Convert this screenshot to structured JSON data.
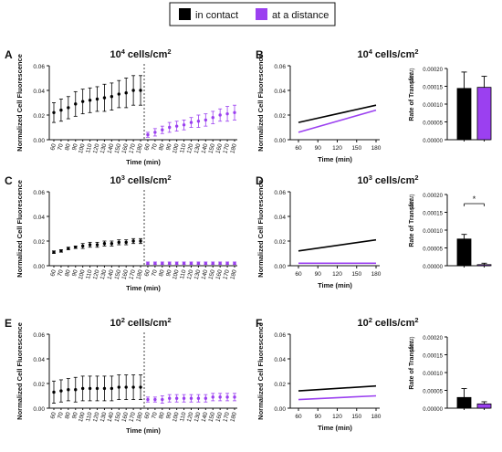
{
  "legend": {
    "items": [
      {
        "label": "in contact",
        "color": "#000000"
      },
      {
        "label": "at a distance",
        "color": "#9b40f0"
      }
    ]
  },
  "colors": {
    "contact": "#000000",
    "distance": "#9b40f0",
    "axis": "#111111"
  },
  "x_label": "Time (min)",
  "timecourse_ylabel": "Normalized Cell Fluorescence",
  "rate_ylabel": "Rate of Transfer",
  "rate_unit": "(Δf/Δt)",
  "rows": [
    {
      "title_base": "10",
      "title_exp": "4",
      "title_unit": " cells/cm",
      "title_sq": "2",
      "left_letter": "A",
      "right_letter": "B",
      "significance": ""
    },
    {
      "title_base": "10",
      "title_exp": "3",
      "title_unit": " cells/cm",
      "title_sq": "2",
      "left_letter": "C",
      "right_letter": "D",
      "significance": "*"
    },
    {
      "title_base": "10",
      "title_exp": "2",
      "title_unit": " cells/cm",
      "title_sq": "2",
      "left_letter": "E",
      "right_letter": "F",
      "significance": ""
    }
  ],
  "chart_data": [
    {
      "type": "scatter",
      "panel": "A",
      "x_ticks": [
        "60",
        "70",
        "80",
        "90",
        "100",
        "110",
        "120",
        "130",
        "140",
        "150",
        "160",
        "170",
        "180",
        "60",
        "70",
        "80",
        "90",
        "100",
        "110",
        "120",
        "130",
        "140",
        "150",
        "160",
        "170",
        "180"
      ],
      "ylim": [
        0,
        0.06
      ],
      "y_ticks": [
        "0.00",
        "0.02",
        "0.04",
        "0.06"
      ],
      "series": [
        {
          "name": "in contact",
          "values": [
            0.022,
            0.024,
            0.026,
            0.029,
            0.031,
            0.032,
            0.033,
            0.034,
            0.035,
            0.037,
            0.038,
            0.04,
            0.04
          ],
          "errors": [
            0.008,
            0.009,
            0.009,
            0.01,
            0.01,
            0.01,
            0.01,
            0.011,
            0.011,
            0.011,
            0.012,
            0.012,
            0.012
          ]
        },
        {
          "name": "at a distance",
          "values": [
            0.004,
            0.006,
            0.008,
            0.01,
            0.011,
            0.012,
            0.014,
            0.015,
            0.016,
            0.018,
            0.02,
            0.021,
            0.022
          ],
          "errors": [
            0.002,
            0.003,
            0.003,
            0.004,
            0.004,
            0.004,
            0.004,
            0.005,
            0.005,
            0.005,
            0.005,
            0.006,
            0.006
          ]
        }
      ]
    },
    {
      "type": "line",
      "panel": "B",
      "xlim": [
        60,
        180
      ],
      "x_ticks": [
        "60",
        "90",
        "120",
        "150",
        "180"
      ],
      "ylim": [
        0,
        0.06
      ],
      "y_ticks": [
        "0.00",
        "0.02",
        "0.04",
        "0.06"
      ],
      "series": [
        {
          "name": "in contact",
          "x": [
            60,
            180
          ],
          "y": [
            0.014,
            0.028
          ]
        },
        {
          "name": "at a distance",
          "x": [
            60,
            180
          ],
          "y": [
            0.006,
            0.024
          ]
        }
      ]
    },
    {
      "type": "bar",
      "panel": "B-rate",
      "categories": [
        "in contact",
        "at a distance"
      ],
      "values": [
        0.000144,
        0.000147
      ],
      "errors": [
        4.6e-05,
        3.1e-05
      ],
      "ylim": [
        0,
        0.0002
      ],
      "y_ticks": [
        "0.00000",
        "0.00005",
        "0.00010",
        "0.00015",
        "0.00020"
      ]
    },
    {
      "type": "scatter",
      "panel": "C",
      "x_ticks": [
        "60",
        "70",
        "80",
        "90",
        "100",
        "110",
        "120",
        "130",
        "140",
        "150",
        "160",
        "170",
        "180",
        "60",
        "70",
        "80",
        "90",
        "100",
        "110",
        "120",
        "130",
        "140",
        "150",
        "160",
        "170",
        "180"
      ],
      "ylim": [
        0,
        0.06
      ],
      "y_ticks": [
        "0.00",
        "0.02",
        "0.04",
        "0.06"
      ],
      "series": [
        {
          "name": "in contact",
          "values": [
            0.011,
            0.012,
            0.014,
            0.015,
            0.016,
            0.017,
            0.017,
            0.018,
            0.018,
            0.019,
            0.019,
            0.02,
            0.02
          ],
          "errors": [
            0.001,
            0.001,
            0.001,
            0.001,
            0.002,
            0.002,
            0.002,
            0.002,
            0.002,
            0.002,
            0.002,
            0.002,
            0.002
          ]
        },
        {
          "name": "at a distance",
          "values": [
            0.002,
            0.002,
            0.002,
            0.002,
            0.002,
            0.002,
            0.002,
            0.002,
            0.002,
            0.002,
            0.002,
            0.002,
            0.002
          ],
          "errors": [
            0.001,
            0.001,
            0.001,
            0.001,
            0.001,
            0.001,
            0.001,
            0.001,
            0.001,
            0.001,
            0.001,
            0.001,
            0.001
          ]
        }
      ]
    },
    {
      "type": "line",
      "panel": "D",
      "xlim": [
        60,
        180
      ],
      "x_ticks": [
        "60",
        "90",
        "120",
        "150",
        "180"
      ],
      "ylim": [
        0,
        0.06
      ],
      "y_ticks": [
        "0.00",
        "0.02",
        "0.04",
        "0.06"
      ],
      "series": [
        {
          "name": "in contact",
          "x": [
            60,
            180
          ],
          "y": [
            0.012,
            0.021
          ]
        },
        {
          "name": "at a distance",
          "x": [
            60,
            180
          ],
          "y": [
            0.002,
            0.002
          ]
        }
      ]
    },
    {
      "type": "bar",
      "panel": "D-rate",
      "categories": [
        "in contact",
        "at a distance"
      ],
      "values": [
        7.5e-05,
        3e-06
      ],
      "errors": [
        1.3e-05,
        4e-06
      ],
      "ylim": [
        0,
        0.0002
      ],
      "y_ticks": [
        "0.00000",
        "0.00005",
        "0.00010",
        "0.00015",
        "0.00020"
      ]
    },
    {
      "type": "scatter",
      "panel": "E",
      "x_ticks": [
        "60",
        "70",
        "80",
        "90",
        "100",
        "110",
        "120",
        "130",
        "140",
        "150",
        "160",
        "170",
        "180",
        "60",
        "70",
        "80",
        "90",
        "100",
        "110",
        "120",
        "130",
        "140",
        "150",
        "160",
        "170",
        "180"
      ],
      "ylim": [
        0,
        0.06
      ],
      "y_ticks": [
        "0.00",
        "0.02",
        "0.04",
        "0.06"
      ],
      "series": [
        {
          "name": "in contact",
          "values": [
            0.013,
            0.014,
            0.015,
            0.015,
            0.016,
            0.016,
            0.016,
            0.016,
            0.016,
            0.017,
            0.017,
            0.017,
            0.017
          ],
          "errors": [
            0.009,
            0.009,
            0.009,
            0.01,
            0.01,
            0.01,
            0.01,
            0.01,
            0.01,
            0.01,
            0.01,
            0.01,
            0.01
          ]
        },
        {
          "name": "at a distance",
          "values": [
            0.007,
            0.007,
            0.007,
            0.008,
            0.008,
            0.008,
            0.008,
            0.008,
            0.008,
            0.009,
            0.009,
            0.009,
            0.009
          ],
          "errors": [
            0.002,
            0.002,
            0.003,
            0.003,
            0.003,
            0.003,
            0.003,
            0.003,
            0.003,
            0.003,
            0.003,
            0.003,
            0.003
          ]
        }
      ]
    },
    {
      "type": "line",
      "panel": "F",
      "xlim": [
        60,
        180
      ],
      "x_ticks": [
        "60",
        "90",
        "120",
        "150",
        "180"
      ],
      "ylim": [
        0,
        0.06
      ],
      "y_ticks": [
        "0.00",
        "0.02",
        "0.04",
        "0.06"
      ],
      "series": [
        {
          "name": "in contact",
          "x": [
            60,
            180
          ],
          "y": [
            0.014,
            0.018
          ]
        },
        {
          "name": "at a distance",
          "x": [
            60,
            180
          ],
          "y": [
            0.007,
            0.01
          ]
        }
      ]
    },
    {
      "type": "bar",
      "panel": "F-rate",
      "categories": [
        "in contact",
        "at a distance"
      ],
      "values": [
        3e-05,
        1.2e-05
      ],
      "errors": [
        2.5e-05,
        6e-06
      ],
      "ylim": [
        0,
        0.0002
      ],
      "y_ticks": [
        "0.00000",
        "0.00005",
        "0.00010",
        "0.00015",
        "0.00020"
      ]
    }
  ]
}
